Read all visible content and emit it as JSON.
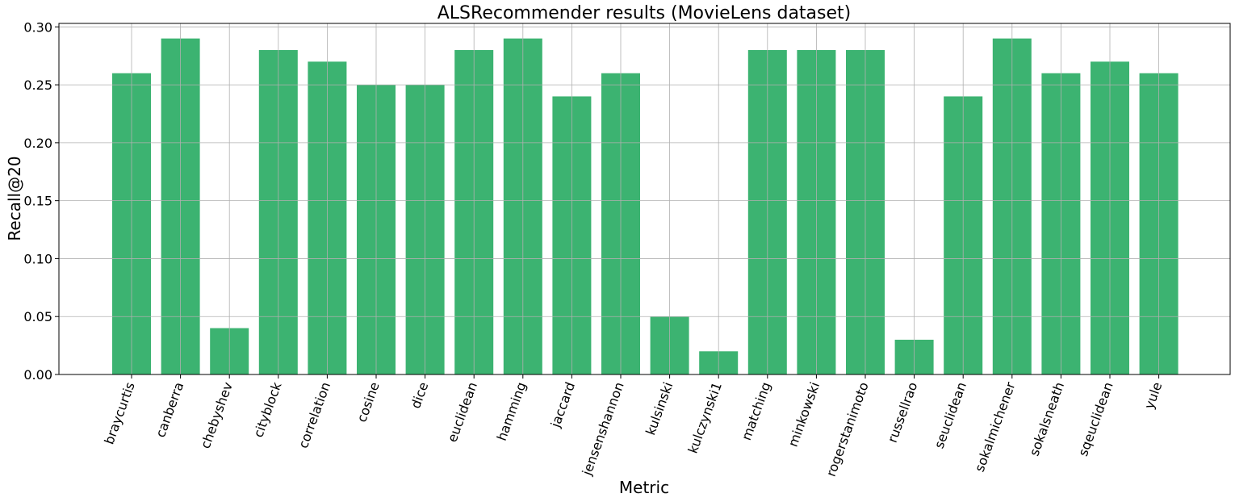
{
  "chart_data": {
    "type": "bar",
    "title": "ALSRecommender results (MovieLens dataset)",
    "xlabel": "Metric",
    "ylabel": "Recall@20",
    "ylim": [
      0,
      0.303
    ],
    "yticks": [
      "0.00",
      "0.05",
      "0.10",
      "0.15",
      "0.20",
      "0.25",
      "0.30"
    ],
    "grid": true,
    "bar_color": "#3CB371",
    "categories": [
      "braycurtis",
      "canberra",
      "chebyshev",
      "cityblock",
      "correlation",
      "cosine",
      "dice",
      "euclidean",
      "hamming",
      "jaccard",
      "jensenshannon",
      "kulsinski",
      "kulczynski1",
      "matching",
      "minkowski",
      "rogerstanimoto",
      "russellrao",
      "seuclidean",
      "sokalmichener",
      "sokalsneath",
      "sqeuclidean",
      "yule"
    ],
    "values": [
      0.26,
      0.29,
      0.04,
      0.28,
      0.27,
      0.25,
      0.25,
      0.28,
      0.29,
      0.24,
      0.26,
      0.05,
      0.02,
      0.28,
      0.28,
      0.28,
      0.03,
      0.24,
      0.29,
      0.26,
      0.27,
      0.26
    ]
  }
}
